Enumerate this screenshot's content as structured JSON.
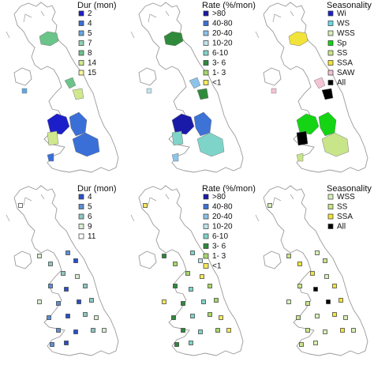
{
  "panels": [
    {
      "legend": {
        "title": "Dur (mon)",
        "items": [
          {
            "label": "2",
            "color": "#1c1fc9"
          },
          {
            "label": "4",
            "color": "#3a6fd8"
          },
          {
            "label": "5",
            "color": "#62a7e0"
          },
          {
            "label": "7",
            "color": "#8fd0b0"
          },
          {
            "label": "8",
            "color": "#6bc48a"
          },
          {
            "label": "14",
            "color": "#cfe88e"
          },
          {
            "label": "15",
            "color": "#f3f59a"
          }
        ]
      }
    },
    {
      "legend": {
        "title": "Rate (%/mon)",
        "items": [
          {
            "label": ">80",
            "color": "#1a1aa8"
          },
          {
            "label": "40-80",
            "color": "#3d72d6"
          },
          {
            "label": "20-40",
            "color": "#8cc3e8"
          },
          {
            "label": "10-20",
            "color": "#bfe3ec"
          },
          {
            "label": "6-10",
            "color": "#7fd4c9"
          },
          {
            "label": "3- 6",
            "color": "#2f8a3c"
          },
          {
            "label": "1- 3",
            "color": "#a6d76a"
          },
          {
            "label": "<1",
            "color": "#f5e85a"
          }
        ]
      }
    },
    {
      "legend": {
        "title": "Seasonality",
        "items": [
          {
            "label": "Wi",
            "color": "#1c1fc9"
          },
          {
            "label": "WS",
            "color": "#6bd8e6"
          },
          {
            "label": "WSS",
            "color": "#d7efb8"
          },
          {
            "label": "Sp",
            "color": "#14d414"
          },
          {
            "label": "SS",
            "color": "#c9e58a"
          },
          {
            "label": "SSA",
            "color": "#f2e33a"
          },
          {
            "label": "SAW",
            "color": "#f4c3d6"
          },
          {
            "label": "All",
            "color": "#000000"
          }
        ]
      }
    },
    {
      "legend": {
        "title": "Dur (mon)",
        "items": [
          {
            "label": "4",
            "color": "#2a50c8"
          },
          {
            "label": "5",
            "color": "#5c8fd6"
          },
          {
            "label": "6",
            "color": "#8fc6c0"
          },
          {
            "label": "9",
            "color": "#d9ecd0"
          },
          {
            "label": "11",
            "color": "#ffffff"
          }
        ]
      }
    },
    {
      "legend": {
        "title": "Rate (%/mon)",
        "items": [
          {
            "label": ">80",
            "color": "#1a1aa8"
          },
          {
            "label": "40-80",
            "color": "#3d72d6"
          },
          {
            "label": "20-40",
            "color": "#8cc3e8"
          },
          {
            "label": "10-20",
            "color": "#bfe3ec"
          },
          {
            "label": "6-10",
            "color": "#7fd4c9"
          },
          {
            "label": "3- 6",
            "color": "#2f8a3c"
          },
          {
            "label": "1- 3",
            "color": "#a6d76a"
          },
          {
            "label": "<1",
            "color": "#f5e85a"
          }
        ]
      }
    },
    {
      "legend": {
        "title": "Seasonality",
        "items": [
          {
            "label": "WSS",
            "color": "#d7efb8"
          },
          {
            "label": "SS",
            "color": "#c9e58a"
          },
          {
            "label": "SSA",
            "color": "#f2e33a"
          },
          {
            "label": "All",
            "color": "#000000"
          }
        ]
      }
    }
  ]
}
